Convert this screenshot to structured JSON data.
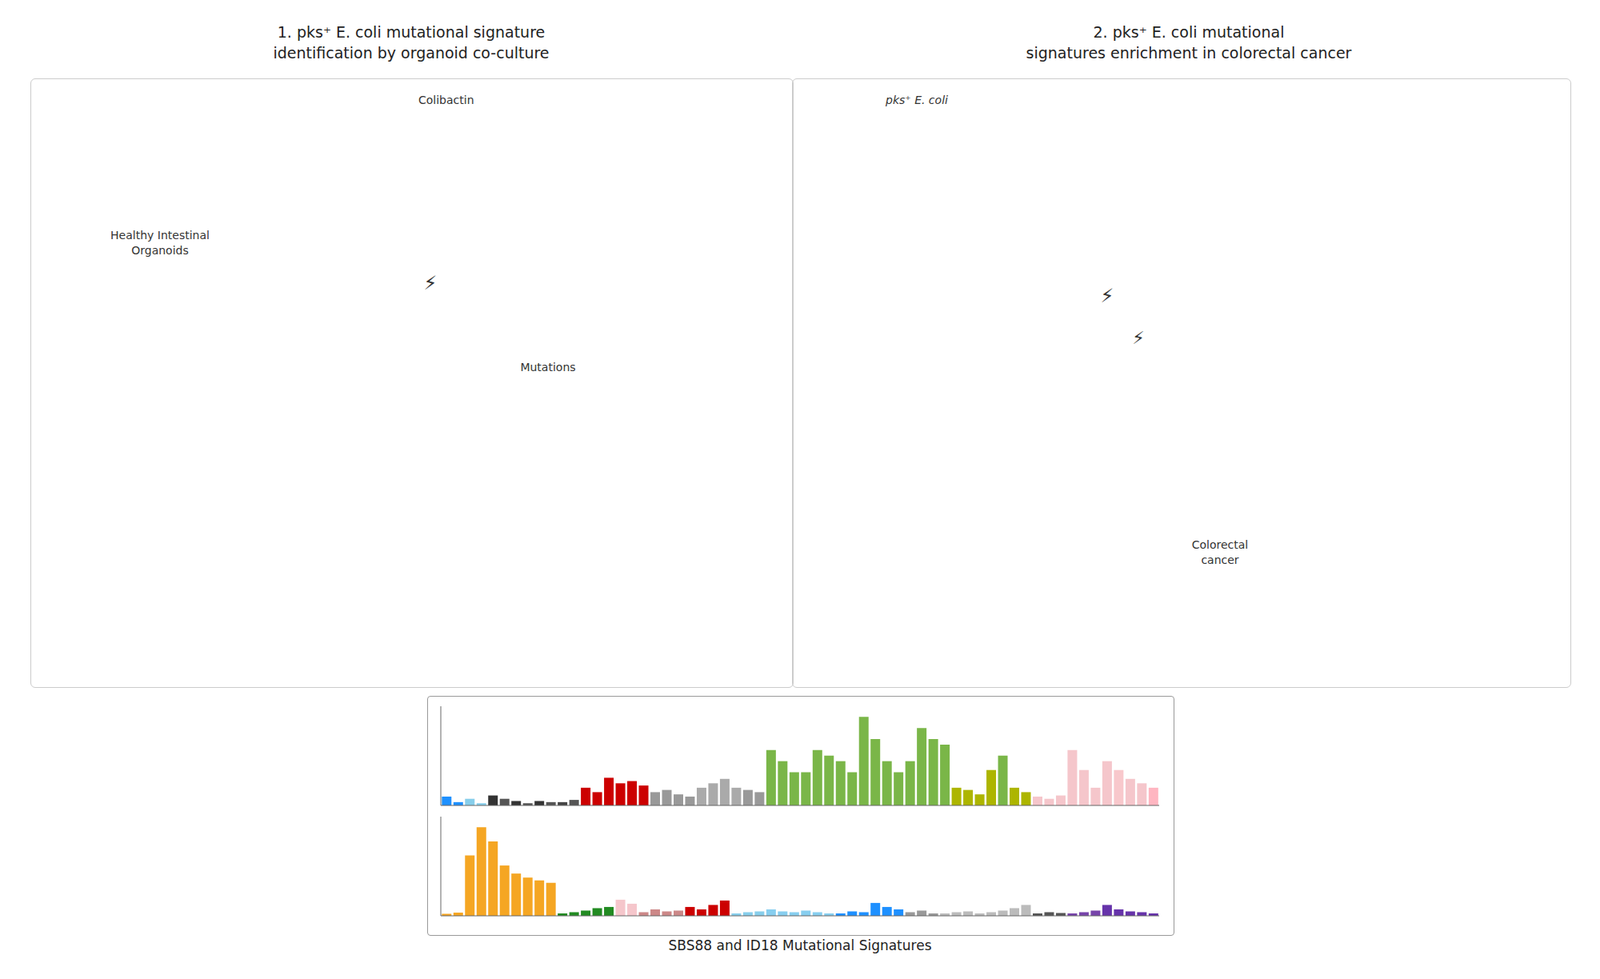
{
  "chart_data": [
    {
      "type": "bar",
      "annotations": [
        "1. pks⁺ E. coli mutational signature\nidentification by organoid co-culture",
        "2. pks⁺ E. coli mutational\nsignatures enrichment in colorectal cancer",
        "Healthy Intestinal\nOrganoids",
        "Colibactin",
        "⚡",
        "Mutations",
        "pks⁺ E. coli",
        "⚡",
        "⚡",
        "Colorectal\ncancer"
      ],
      "values": [
        0.008,
        0.003,
        0.006,
        0.002,
        0.009,
        0.006,
        0.004,
        0.002,
        0.004,
        0.003,
        0.003,
        0.005,
        0.016,
        0.012,
        0.025,
        0.02,
        0.022,
        0.018,
        0.012,
        0.014,
        0.01,
        0.008,
        0.016,
        0.02,
        0.024,
        0.016,
        0.014,
        0.012,
        0.05,
        0.04,
        0.03,
        0.03,
        0.05,
        0.045,
        0.04,
        0.03,
        0.08,
        0.06,
        0.04,
        0.03,
        0.04,
        0.07,
        0.06,
        0.055,
        0.016,
        0.014,
        0.01,
        0.032,
        0.045,
        0.016,
        0.012,
        0.008,
        0.006,
        0.009,
        0.05,
        0.032,
        0.016,
        0.04,
        0.032,
        0.024,
        0.02,
        0.016
      ],
      "colors": [
        "#1e90ff",
        "#1e90ff",
        "#87ceeb",
        "#87ceeb",
        "#333333",
        "#555555",
        "#333333",
        "#555555",
        "#333333",
        "#555555",
        "#444444",
        "#555555",
        "#cc0000",
        "#cc0000",
        "#cc0000",
        "#cc0000",
        "#cc0000",
        "#cc0000",
        "#999999",
        "#999999",
        "#999999",
        "#999999",
        "#aaaaaa",
        "#aaaaaa",
        "#aaaaaa",
        "#aaaaaa",
        "#999999",
        "#999999",
        "#7ab648",
        "#7ab648",
        "#7ab648",
        "#7ab648",
        "#7ab648",
        "#7ab648",
        "#7ab648",
        "#7ab648",
        "#7ab648",
        "#7ab648",
        "#7ab648",
        "#7ab648",
        "#7ab648",
        "#7ab648",
        "#7ab648",
        "#7ab648",
        "#adb500",
        "#adb500",
        "#adb500",
        "#adb500",
        "#7ab648",
        "#adb500",
        "#adb500",
        "#f5c6cb",
        "#f5c6cb",
        "#f5c6cb",
        "#f5c6cb",
        "#f5c6cb",
        "#f5c6cb",
        "#f5c6cb",
        "#f8c8cc",
        "#f5c6cb",
        "#f5c6cb",
        "#ffb6c1"
      ],
      "ylim": [
        0,
        0.0896
      ],
      "grid": false,
      "tick_labels": false
    },
    {
      "type": "bar",
      "xlabel": "SBS88 and ID18 Mutational Signatures",
      "values": [
        0.005,
        0.008,
        0.15,
        0.22,
        0.185,
        0.125,
        0.105,
        0.095,
        0.088,
        0.082,
        0.006,
        0.009,
        0.013,
        0.019,
        0.022,
        0.04,
        0.03,
        0.009,
        0.016,
        0.011,
        0.013,
        0.022,
        0.016,
        0.027,
        0.038,
        0.006,
        0.009,
        0.011,
        0.016,
        0.011,
        0.009,
        0.013,
        0.009,
        0.006,
        0.006,
        0.011,
        0.009,
        0.032,
        0.022,
        0.016,
        0.009,
        0.013,
        0.006,
        0.006,
        0.009,
        0.011,
        0.006,
        0.009,
        0.013,
        0.019,
        0.027,
        0.006,
        0.009,
        0.007,
        0.006,
        0.009,
        0.013,
        0.027,
        0.016,
        0.011,
        0.009,
        0.006
      ],
      "colors": [
        "#f5a623",
        "#f5a623",
        "#f5a623",
        "#f5a623",
        "#f5a623",
        "#f5a623",
        "#f5a623",
        "#f5a623",
        "#f5a623",
        "#f5a623",
        "#228B22",
        "#228B22",
        "#228B22",
        "#228B22",
        "#228B22",
        "#f5c6cb",
        "#f5c6cb",
        "#cc8888",
        "#cc8888",
        "#cc8888",
        "#cc8888",
        "#cc0000",
        "#cc0000",
        "#cc0000",
        "#cc0000",
        "#87ceeb",
        "#87ceeb",
        "#87ceeb",
        "#87ceef",
        "#87ceef",
        "#87ceef",
        "#87ceef",
        "#87ceef",
        "#87ceef",
        "#1e90ff",
        "#1e90ff",
        "#1e90ff",
        "#1e90ff",
        "#1e90ff",
        "#1e90ff",
        "#999999",
        "#999999",
        "#999999",
        "#bbbbbb",
        "#bbbbbb",
        "#bbbbbb",
        "#bbbbbb",
        "#bbbbbb",
        "#bbbbbb",
        "#bbbbbb",
        "#bbbbbb",
        "#555555",
        "#555555",
        "#555555",
        "#7744aa",
        "#7744aa",
        "#7744aa",
        "#6633aa",
        "#6633aa",
        "#6633aa",
        "#6633aa",
        "#6633aa"
      ],
      "ylim": [
        0,
        0.2464
      ],
      "grid": false,
      "tick_labels": false
    }
  ]
}
